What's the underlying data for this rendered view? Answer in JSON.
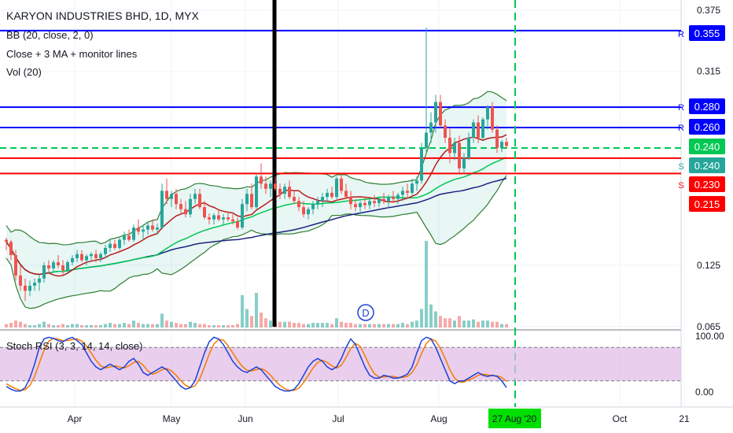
{
  "header": {
    "title": "KARYON INDUSTRIES BHD, 1D, MYX",
    "indicators": [
      "BB (20, close, 2, 0)",
      "Close + 3 MA + monitor lines",
      "Vol (20)"
    ]
  },
  "stoch": {
    "label": "Stoch RSI (3, 3, 14, 14, close)"
  },
  "colors": {
    "up": "#26a69a",
    "down": "#ef5350",
    "resistance": "#0000ff",
    "support": "#ff0000",
    "ma_fast": "#b71c1c",
    "ma_mid": "#00c853",
    "ma_slow": "#1a237e",
    "bb": "#2e7d32",
    "stoch_k": "#1e40d8",
    "stoch_d": "#f57c00",
    "stoch_band": "#e1bee7",
    "dashed": "#00c853"
  },
  "chart_data": {
    "type": "candlestick",
    "price_ticks": [
      "0.375",
      "0.315",
      "0.125",
      "0.065"
    ],
    "stoch_ticks": [
      "100.00",
      "0.00"
    ],
    "x_ticks": [
      "Apr",
      "May",
      "Jun",
      "Jul",
      "Aug",
      "Oct",
      "21"
    ],
    "cursor_date": "27 Aug '20",
    "price_tags": [
      {
        "text": "0.355",
        "letter": "R",
        "color": "#0000ff"
      },
      {
        "text": "0.280",
        "letter": "R",
        "color": "#0000ff"
      },
      {
        "text": "0.260",
        "letter": "R",
        "color": "#0000ff"
      },
      {
        "text": "0.240",
        "letter": "",
        "color": "#00c853"
      },
      {
        "text": "0.240",
        "letter": "S",
        "color": "#26a69a"
      },
      {
        "text": "0.230",
        "letter": "S",
        "color": "#ff0000"
      },
      {
        "text": "0.215",
        "letter": "",
        "color": "#ff0000"
      }
    ],
    "levels": [
      {
        "value": 0.355,
        "kind": "resistance"
      },
      {
        "value": 0.28,
        "kind": "resistance"
      },
      {
        "value": 0.26,
        "kind": "resistance"
      },
      {
        "value": 0.24,
        "kind": "dashed"
      },
      {
        "value": 0.23,
        "kind": "support"
      },
      {
        "value": 0.215,
        "kind": "support"
      }
    ],
    "dividend_marker": "D",
    "stoch_bands": [
      80,
      20
    ],
    "candles": [
      [
        0.15,
        0.152,
        0.14,
        0.148
      ],
      [
        0.148,
        0.15,
        0.13,
        0.135
      ],
      [
        0.135,
        0.14,
        0.11,
        0.115
      ],
      [
        0.115,
        0.125,
        0.1,
        0.105
      ],
      [
        0.105,
        0.112,
        0.09,
        0.1
      ],
      [
        0.1,
        0.11,
        0.095,
        0.105
      ],
      [
        0.105,
        0.112,
        0.1,
        0.108
      ],
      [
        0.108,
        0.115,
        0.1,
        0.112
      ],
      [
        0.112,
        0.128,
        0.108,
        0.125
      ],
      [
        0.125,
        0.13,
        0.118,
        0.122
      ],
      [
        0.122,
        0.13,
        0.118,
        0.128
      ],
      [
        0.128,
        0.135,
        0.122,
        0.125
      ],
      [
        0.125,
        0.13,
        0.115,
        0.12
      ],
      [
        0.12,
        0.13,
        0.118,
        0.128
      ],
      [
        0.128,
        0.135,
        0.125,
        0.132
      ],
      [
        0.132,
        0.14,
        0.128,
        0.136
      ],
      [
        0.136,
        0.14,
        0.128,
        0.13
      ],
      [
        0.13,
        0.136,
        0.125,
        0.134
      ],
      [
        0.134,
        0.138,
        0.13,
        0.136
      ],
      [
        0.136,
        0.14,
        0.128,
        0.132
      ],
      [
        0.132,
        0.138,
        0.128,
        0.136
      ],
      [
        0.136,
        0.145,
        0.132,
        0.142
      ],
      [
        0.142,
        0.15,
        0.138,
        0.146
      ],
      [
        0.146,
        0.15,
        0.14,
        0.142
      ],
      [
        0.142,
        0.152,
        0.14,
        0.15
      ],
      [
        0.15,
        0.158,
        0.145,
        0.154
      ],
      [
        0.154,
        0.16,
        0.148,
        0.15
      ],
      [
        0.15,
        0.165,
        0.148,
        0.162
      ],
      [
        0.162,
        0.17,
        0.155,
        0.158
      ],
      [
        0.158,
        0.165,
        0.15,
        0.16
      ],
      [
        0.16,
        0.168,
        0.155,
        0.164
      ],
      [
        0.164,
        0.17,
        0.158,
        0.16
      ],
      [
        0.16,
        0.166,
        0.155,
        0.162
      ],
      [
        0.162,
        0.205,
        0.16,
        0.198
      ],
      [
        0.198,
        0.21,
        0.185,
        0.19
      ],
      [
        0.19,
        0.198,
        0.182,
        0.195
      ],
      [
        0.195,
        0.2,
        0.18,
        0.185
      ],
      [
        0.185,
        0.19,
        0.175,
        0.18
      ],
      [
        0.18,
        0.188,
        0.172,
        0.175
      ],
      [
        0.175,
        0.195,
        0.172,
        0.19
      ],
      [
        0.19,
        0.2,
        0.185,
        0.195
      ],
      [
        0.195,
        0.2,
        0.18,
        0.182
      ],
      [
        0.182,
        0.188,
        0.17,
        0.172
      ],
      [
        0.172,
        0.176,
        0.165,
        0.17
      ],
      [
        0.17,
        0.176,
        0.165,
        0.174
      ],
      [
        0.174,
        0.18,
        0.168,
        0.17
      ],
      [
        0.17,
        0.175,
        0.165,
        0.172
      ],
      [
        0.172,
        0.178,
        0.168,
        0.17
      ],
      [
        0.17,
        0.175,
        0.165,
        0.168
      ],
      [
        0.168,
        0.172,
        0.16,
        0.162
      ],
      [
        0.162,
        0.19,
        0.16,
        0.185
      ],
      [
        0.185,
        0.2,
        0.178,
        0.195
      ],
      [
        0.195,
        0.205,
        0.18,
        0.182
      ],
      [
        0.182,
        0.215,
        0.18,
        0.212
      ],
      [
        0.212,
        0.225,
        0.2,
        0.205
      ],
      [
        0.205,
        0.212,
        0.195,
        0.2
      ],
      [
        0.2,
        0.208,
        0.192,
        0.205
      ],
      [
        0.205,
        0.212,
        0.198,
        0.2
      ],
      [
        0.2,
        0.205,
        0.19,
        0.195
      ],
      [
        0.195,
        0.205,
        0.19,
        0.202
      ],
      [
        0.202,
        0.208,
        0.19,
        0.192
      ],
      [
        0.192,
        0.198,
        0.185,
        0.188
      ],
      [
        0.188,
        0.192,
        0.178,
        0.182
      ],
      [
        0.182,
        0.188,
        0.172,
        0.175
      ],
      [
        0.175,
        0.182,
        0.17,
        0.18
      ],
      [
        0.18,
        0.188,
        0.175,
        0.185
      ],
      [
        0.185,
        0.192,
        0.18,
        0.188
      ],
      [
        0.188,
        0.196,
        0.182,
        0.192
      ],
      [
        0.192,
        0.2,
        0.186,
        0.196
      ],
      [
        0.196,
        0.202,
        0.19,
        0.192
      ],
      [
        0.192,
        0.212,
        0.19,
        0.21
      ],
      [
        0.21,
        0.215,
        0.195,
        0.198
      ],
      [
        0.198,
        0.205,
        0.19,
        0.192
      ],
      [
        0.192,
        0.198,
        0.18,
        0.185
      ],
      [
        0.185,
        0.19,
        0.178,
        0.182
      ],
      [
        0.182,
        0.188,
        0.175,
        0.186
      ],
      [
        0.186,
        0.192,
        0.18,
        0.184
      ],
      [
        0.184,
        0.19,
        0.18,
        0.188
      ],
      [
        0.188,
        0.194,
        0.182,
        0.186
      ],
      [
        0.186,
        0.192,
        0.182,
        0.19
      ],
      [
        0.19,
        0.196,
        0.185,
        0.188
      ],
      [
        0.188,
        0.194,
        0.182,
        0.192
      ],
      [
        0.192,
        0.198,
        0.186,
        0.19
      ],
      [
        0.19,
        0.196,
        0.185,
        0.194
      ],
      [
        0.194,
        0.202,
        0.188,
        0.198
      ],
      [
        0.198,
        0.205,
        0.19,
        0.196
      ],
      [
        0.196,
        0.21,
        0.194,
        0.205
      ],
      [
        0.205,
        0.212,
        0.198,
        0.208
      ],
      [
        0.208,
        0.245,
        0.205,
        0.24
      ],
      [
        0.24,
        0.358,
        0.235,
        0.255
      ],
      [
        0.255,
        0.275,
        0.245,
        0.265
      ],
      [
        0.265,
        0.292,
        0.255,
        0.285
      ],
      [
        0.285,
        0.292,
        0.26,
        0.262
      ],
      [
        0.262,
        0.268,
        0.245,
        0.25
      ],
      [
        0.25,
        0.26,
        0.225,
        0.235
      ],
      [
        0.235,
        0.25,
        0.228,
        0.245
      ],
      [
        0.245,
        0.252,
        0.215,
        0.22
      ],
      [
        0.22,
        0.235,
        0.215,
        0.23
      ],
      [
        0.23,
        0.255,
        0.228,
        0.25
      ],
      [
        0.25,
        0.268,
        0.245,
        0.265
      ],
      [
        0.265,
        0.272,
        0.245,
        0.25
      ],
      [
        0.25,
        0.27,
        0.248,
        0.268
      ],
      [
        0.268,
        0.282,
        0.258,
        0.28
      ],
      [
        0.28,
        0.285,
        0.255,
        0.258
      ],
      [
        0.258,
        0.262,
        0.235,
        0.24
      ],
      [
        0.24,
        0.248,
        0.236,
        0.246
      ],
      [
        0.246,
        0.25,
        0.24,
        0.242
      ]
    ],
    "volume": [
      0.3,
      0.4,
      0.6,
      0.5,
      0.3,
      0.2,
      0.2,
      0.3,
      0.5,
      0.3,
      0.2,
      0.2,
      0.3,
      0.2,
      0.3,
      0.3,
      0.2,
      0.2,
      0.2,
      0.2,
      0.2,
      0.3,
      0.4,
      0.3,
      0.3,
      0.4,
      0.3,
      0.6,
      0.4,
      0.3,
      0.3,
      0.3,
      0.3,
      1.2,
      0.6,
      0.5,
      0.4,
      0.3,
      0.3,
      0.5,
      0.4,
      0.3,
      0.3,
      0.2,
      0.2,
      0.2,
      0.2,
      0.2,
      0.2,
      0.3,
      2.8,
      1.6,
      1.0,
      3.0,
      1.3,
      0.8,
      0.6,
      0.5,
      0.5,
      0.5,
      0.5,
      0.4,
      0.4,
      0.3,
      0.3,
      0.4,
      0.4,
      0.4,
      0.4,
      0.3,
      0.8,
      0.5,
      0.4,
      0.4,
      0.3,
      0.3,
      0.3,
      0.3,
      0.3,
      0.3,
      0.3,
      0.3,
      0.3,
      0.3,
      0.4,
      0.3,
      0.5,
      0.6,
      1.6,
      7.5,
      2.0,
      1.4,
      1.0,
      0.8,
      0.8,
      0.6,
      1.0,
      0.6,
      0.6,
      0.7,
      0.5,
      0.6,
      0.6,
      0.5,
      0.5,
      0.3,
      0.3
    ],
    "stoch_k": [
      10,
      5,
      2,
      2,
      8,
      25,
      50,
      80,
      95,
      98,
      96,
      92,
      90,
      95,
      98,
      92,
      85,
      70,
      55,
      45,
      40,
      45,
      50,
      45,
      40,
      45,
      55,
      60,
      50,
      35,
      30,
      35,
      40,
      45,
      40,
      30,
      20,
      10,
      5,
      8,
      20,
      45,
      70,
      90,
      98,
      95,
      85,
      70,
      55,
      45,
      38,
      35,
      40,
      45,
      40,
      30,
      20,
      10,
      5,
      2,
      2,
      5,
      15,
      30,
      45,
      55,
      60,
      55,
      45,
      40,
      45,
      60,
      80,
      95,
      85,
      65,
      45,
      30,
      25,
      25,
      30,
      28,
      25,
      25,
      28,
      32,
      45,
      70,
      92,
      98,
      95,
      80,
      60,
      40,
      20,
      15,
      20,
      20,
      25,
      30,
      35,
      30,
      28,
      30,
      28,
      20,
      8
    ],
    "stoch_d": [
      15,
      10,
      6,
      3,
      4,
      12,
      28,
      52,
      75,
      91,
      96,
      95,
      92,
      92,
      94,
      95,
      91,
      82,
      70,
      57,
      47,
      43,
      45,
      47,
      45,
      43,
      47,
      53,
      55,
      48,
      38,
      32,
      35,
      40,
      42,
      38,
      30,
      20,
      12,
      8,
      11,
      24,
      45,
      68,
      86,
      94,
      93,
      83,
      70,
      57,
      46,
      39,
      38,
      40,
      42,
      38,
      30,
      20,
      12,
      6,
      3,
      3,
      7,
      17,
      30,
      43,
      53,
      57,
      53,
      47,
      43,
      48,
      62,
      78,
      87,
      82,
      65,
      47,
      33,
      27,
      27,
      28,
      28,
      26,
      26,
      28,
      35,
      49,
      69,
      87,
      95,
      91,
      78,
      60,
      40,
      25,
      18,
      18,
      22,
      25,
      30,
      32,
      31,
      29,
      29,
      26,
      19
    ]
  }
}
